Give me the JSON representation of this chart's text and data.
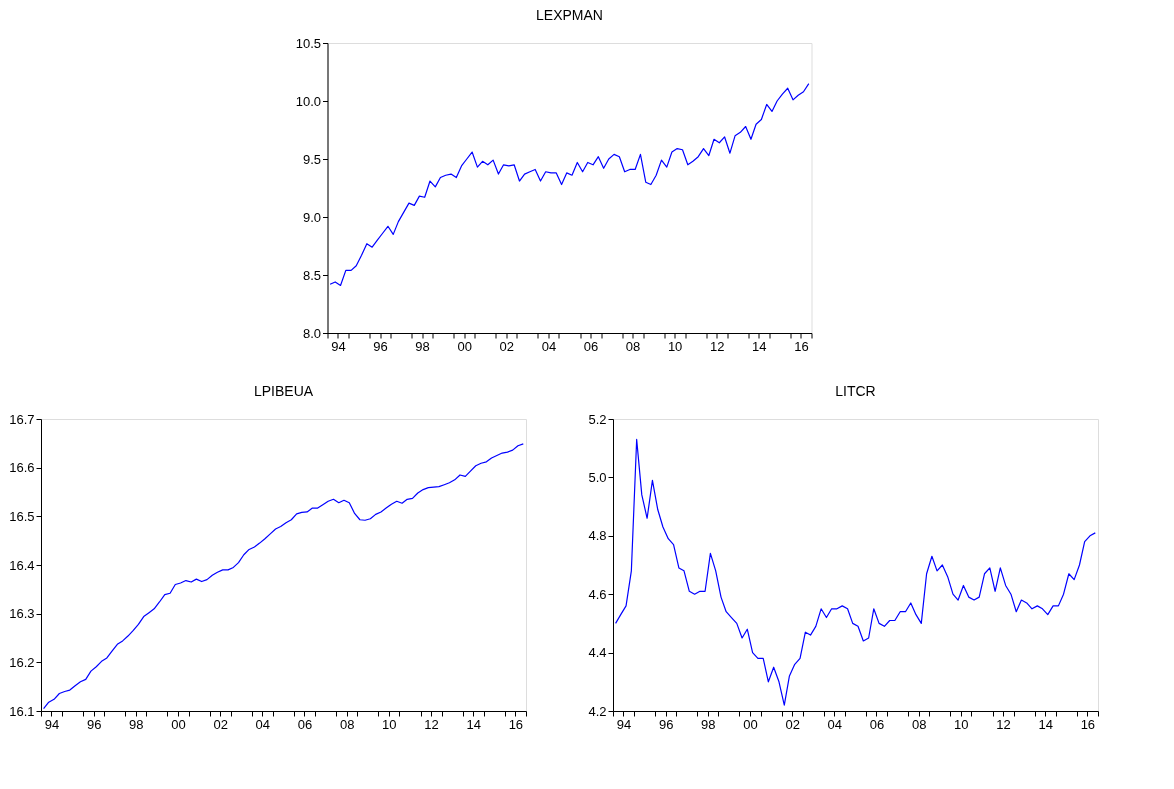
{
  "chart_data": [
    {
      "type": "line",
      "title": "LEXPMAN",
      "x": [
        "1994-02-15",
        "1994-05-15",
        "1994-08-15",
        "1994-11-15",
        "1995-02-15",
        "1995-05-15",
        "1995-08-15",
        "1995-11-15",
        "1996-02-15",
        "1996-05-15",
        "1996-08-15",
        "1996-11-15",
        "1997-02-15",
        "1997-05-15",
        "1997-08-15",
        "1997-11-15",
        "1998-02-15",
        "1998-05-15",
        "1998-08-15",
        "1998-11-15",
        "1999-02-15",
        "1999-05-15",
        "1999-08-15",
        "1999-11-15",
        "2000-02-15",
        "2000-05-15",
        "2000-08-15",
        "2000-11-15",
        "2001-02-15",
        "2001-05-15",
        "2001-08-15",
        "2001-11-15",
        "2002-02-15",
        "2002-05-15",
        "2002-08-15",
        "2002-11-15",
        "2003-02-15",
        "2003-05-15",
        "2003-08-15",
        "2003-11-15",
        "2004-02-15",
        "2004-05-15",
        "2004-08-15",
        "2004-11-15",
        "2005-02-15",
        "2005-05-15",
        "2005-08-15",
        "2005-11-15",
        "2006-02-15",
        "2006-05-15",
        "2006-08-15",
        "2006-11-15",
        "2007-02-15",
        "2007-05-15",
        "2007-08-15",
        "2007-11-15",
        "2008-02-15",
        "2008-05-15",
        "2008-08-15",
        "2008-11-15",
        "2009-02-15",
        "2009-05-15",
        "2009-08-15",
        "2009-11-15",
        "2010-02-15",
        "2010-05-15",
        "2010-08-15",
        "2010-11-15",
        "2011-02-15",
        "2011-05-15",
        "2011-08-15",
        "2011-11-15",
        "2012-02-15",
        "2012-05-15",
        "2012-08-15",
        "2012-11-15",
        "2013-02-15",
        "2013-05-15",
        "2013-08-15",
        "2013-11-15",
        "2014-02-15",
        "2014-05-15",
        "2014-08-15",
        "2014-11-15",
        "2015-02-15",
        "2015-05-15",
        "2015-08-15",
        "2015-11-15",
        "2016-02-15",
        "2016-05-15",
        "2016-08-15",
        "2016-11-15"
      ],
      "series": [
        {
          "color": "#0000ff",
          "values": [
            8.42,
            8.44,
            8.41,
            8.54,
            8.54,
            8.58,
            8.67,
            8.77,
            8.74,
            8.8,
            8.86,
            8.92,
            8.85,
            8.96,
            9.04,
            9.12,
            9.1,
            9.18,
            9.17,
            9.31,
            9.26,
            9.34,
            9.36,
            9.37,
            9.34,
            9.44,
            9.5,
            9.56,
            9.43,
            9.48,
            9.45,
            9.49,
            9.37,
            9.45,
            9.44,
            9.45,
            9.31,
            9.37,
            9.39,
            9.41,
            9.31,
            9.39,
            9.38,
            9.38,
            9.28,
            9.38,
            9.36,
            9.47,
            9.39,
            9.47,
            9.45,
            9.52,
            9.42,
            9.5,
            9.54,
            9.52,
            9.39,
            9.41,
            9.41,
            9.54,
            9.3,
            9.28,
            9.36,
            9.49,
            9.43,
            9.56,
            9.59,
            9.58,
            9.45,
            9.48,
            9.52,
            9.59,
            9.53,
            9.67,
            9.64,
            9.69,
            9.55,
            9.7,
            9.73,
            9.78,
            9.67,
            9.8,
            9.84,
            9.97,
            9.91,
            10.0,
            10.06,
            10.11,
            10.01,
            10.05,
            10.08,
            10.15
          ]
        }
      ],
      "xlim": [
        "1994-01-01",
        "2017-01-01"
      ],
      "xticks": [
        {
          "value": "1994",
          "label": null
        },
        {
          "value": "1994-07",
          "label": "94"
        },
        {
          "value": "1995",
          "label": null
        },
        {
          "value": "1996",
          "label": null
        },
        {
          "value": "1996-07",
          "label": "96"
        },
        {
          "value": "1997",
          "label": null
        },
        {
          "value": "1998",
          "label": null
        },
        {
          "value": "1998-07",
          "label": "98"
        },
        {
          "value": "1999",
          "label": null
        },
        {
          "value": "2000",
          "label": null
        },
        {
          "value": "2000-07",
          "label": "00"
        },
        {
          "value": "2001",
          "label": null
        },
        {
          "value": "2002",
          "label": null
        },
        {
          "value": "2002-07",
          "label": "02"
        },
        {
          "value": "2003",
          "label": null
        },
        {
          "value": "2004",
          "label": null
        },
        {
          "value": "2004-07",
          "label": "04"
        },
        {
          "value": "2005",
          "label": null
        },
        {
          "value": "2006",
          "label": null
        },
        {
          "value": "2006-07",
          "label": "06"
        },
        {
          "value": "2007",
          "label": null
        },
        {
          "value": "2008",
          "label": null
        },
        {
          "value": "2008-07",
          "label": "08"
        },
        {
          "value": "2009",
          "label": null
        },
        {
          "value": "2010",
          "label": null
        },
        {
          "value": "2010-07",
          "label": "10"
        },
        {
          "value": "2011",
          "label": null
        },
        {
          "value": "2012",
          "label": null
        },
        {
          "value": "2012-07",
          "label": "12"
        },
        {
          "value": "2013",
          "label": null
        },
        {
          "value": "2014",
          "label": null
        },
        {
          "value": "2014-07",
          "label": "14"
        },
        {
          "value": "2015",
          "label": null
        },
        {
          "value": "2016",
          "label": null
        },
        {
          "value": "2016-07",
          "label": "16"
        },
        {
          "value": "2017",
          "label": null
        }
      ],
      "ylim": [
        8.0,
        10.5
      ],
      "yticks": [
        {
          "value": 8,
          "label": "8.0"
        },
        {
          "value": 8.5,
          "label": "8.5"
        },
        {
          "value": 9,
          "label": "9.0"
        },
        {
          "value": 9.5,
          "label": "9.5"
        },
        {
          "value": 10,
          "label": "10.0"
        },
        {
          "value": 10.5,
          "label": "10.5"
        }
      ]
    },
    {
      "type": "line",
      "title": "LPIBEUA",
      "x": [
        "1994-02-15",
        "1994-05-15",
        "1994-08-15",
        "1994-11-15",
        "1995-02-15",
        "1995-05-15",
        "1995-08-15",
        "1995-11-15",
        "1996-02-15",
        "1996-05-15",
        "1996-08-15",
        "1996-11-15",
        "1997-02-15",
        "1997-05-15",
        "1997-08-15",
        "1997-11-15",
        "1998-02-15",
        "1998-05-15",
        "1998-08-15",
        "1998-11-15",
        "1999-02-15",
        "1999-05-15",
        "1999-08-15",
        "1999-11-15",
        "2000-02-15",
        "2000-05-15",
        "2000-08-15",
        "2000-11-15",
        "2001-02-15",
        "2001-05-15",
        "2001-08-15",
        "2001-11-15",
        "2002-02-15",
        "2002-05-15",
        "2002-08-15",
        "2002-11-15",
        "2003-02-15",
        "2003-05-15",
        "2003-08-15",
        "2003-11-15",
        "2004-02-15",
        "2004-05-15",
        "2004-08-15",
        "2004-11-15",
        "2005-02-15",
        "2005-05-15",
        "2005-08-15",
        "2005-11-15",
        "2006-02-15",
        "2006-05-15",
        "2006-08-15",
        "2006-11-15",
        "2007-02-15",
        "2007-05-15",
        "2007-08-15",
        "2007-11-15",
        "2008-02-15",
        "2008-05-15",
        "2008-08-15",
        "2008-11-15",
        "2009-02-15",
        "2009-05-15",
        "2009-08-15",
        "2009-11-15",
        "2010-02-15",
        "2010-05-15",
        "2010-08-15",
        "2010-11-15",
        "2011-02-15",
        "2011-05-15",
        "2011-08-15",
        "2011-11-15",
        "2012-02-15",
        "2012-05-15",
        "2012-08-15",
        "2012-11-15",
        "2013-02-15",
        "2013-05-15",
        "2013-08-15",
        "2013-11-15",
        "2014-02-15",
        "2014-05-15",
        "2014-08-15",
        "2014-11-15",
        "2015-02-15",
        "2015-05-15",
        "2015-08-15",
        "2015-11-15",
        "2016-02-15",
        "2016-05-15",
        "2016-08-15",
        "2016-11-15"
      ],
      "series": [
        {
          "color": "#0000ff",
          "values": [
            16.105,
            16.118,
            16.124,
            16.136,
            16.14,
            16.143,
            16.152,
            16.16,
            16.165,
            16.182,
            16.191,
            16.202,
            16.209,
            16.223,
            16.237,
            16.244,
            16.254,
            16.265,
            16.278,
            16.294,
            16.302,
            16.31,
            16.324,
            16.339,
            16.342,
            16.36,
            16.363,
            16.368,
            16.365,
            16.371,
            16.366,
            16.37,
            16.379,
            16.385,
            16.39,
            16.39,
            16.395,
            16.405,
            16.421,
            16.432,
            16.437,
            16.445,
            16.454,
            16.464,
            16.474,
            16.479,
            16.487,
            16.493,
            16.505,
            16.508,
            16.509,
            16.517,
            16.517,
            16.524,
            16.531,
            16.535,
            16.528,
            16.533,
            16.528,
            16.506,
            16.493,
            16.492,
            16.495,
            16.504,
            16.509,
            16.517,
            16.525,
            16.531,
            16.527,
            16.535,
            16.537,
            16.548,
            16.555,
            16.559,
            16.56,
            16.561,
            16.565,
            16.569,
            16.575,
            16.585,
            16.582,
            16.593,
            16.604,
            16.609,
            16.612,
            16.62,
            16.625,
            16.63,
            16.632,
            16.636,
            16.645,
            16.649
          ]
        }
      ],
      "xlim": [
        "1994-01-01",
        "2017-01-01"
      ],
      "xticks": [
        {
          "value": "1994",
          "label": null
        },
        {
          "value": "1994-07",
          "label": "94"
        },
        {
          "value": "1995",
          "label": null
        },
        {
          "value": "1996",
          "label": null
        },
        {
          "value": "1996-07",
          "label": "96"
        },
        {
          "value": "1997",
          "label": null
        },
        {
          "value": "1998",
          "label": null
        },
        {
          "value": "1998-07",
          "label": "98"
        },
        {
          "value": "1999",
          "label": null
        },
        {
          "value": "2000",
          "label": null
        },
        {
          "value": "2000-07",
          "label": "00"
        },
        {
          "value": "2001",
          "label": null
        },
        {
          "value": "2002",
          "label": null
        },
        {
          "value": "2002-07",
          "label": "02"
        },
        {
          "value": "2003",
          "label": null
        },
        {
          "value": "2004",
          "label": null
        },
        {
          "value": "2004-07",
          "label": "04"
        },
        {
          "value": "2005",
          "label": null
        },
        {
          "value": "2006",
          "label": null
        },
        {
          "value": "2006-07",
          "label": "06"
        },
        {
          "value": "2007",
          "label": null
        },
        {
          "value": "2008",
          "label": null
        },
        {
          "value": "2008-07",
          "label": "08"
        },
        {
          "value": "2009",
          "label": null
        },
        {
          "value": "2010",
          "label": null
        },
        {
          "value": "2010-07",
          "label": "10"
        },
        {
          "value": "2011",
          "label": null
        },
        {
          "value": "2012",
          "label": null
        },
        {
          "value": "2012-07",
          "label": "12"
        },
        {
          "value": "2013",
          "label": null
        },
        {
          "value": "2014",
          "label": null
        },
        {
          "value": "2014-07",
          "label": "14"
        },
        {
          "value": "2015",
          "label": null
        },
        {
          "value": "2016",
          "label": null
        },
        {
          "value": "2016-07",
          "label": "16"
        },
        {
          "value": "2017",
          "label": null
        }
      ],
      "ylim": [
        16.1,
        16.7
      ],
      "yticks": [
        16.1,
        16.2,
        16.3,
        16.4,
        16.5,
        16.6,
        16.7
      ]
    },
    {
      "type": "line",
      "title": "LITCR",
      "x": [
        "1994-02-15",
        "1994-05-15",
        "1994-08-15",
        "1994-11-15",
        "1995-02-15",
        "1995-05-15",
        "1995-08-15",
        "1995-11-15",
        "1996-02-15",
        "1996-05-15",
        "1996-08-15",
        "1996-11-15",
        "1997-02-15",
        "1997-05-15",
        "1997-08-15",
        "1997-11-15",
        "1998-02-15",
        "1998-05-15",
        "1998-08-15",
        "1998-11-15",
        "1999-02-15",
        "1999-05-15",
        "1999-08-15",
        "1999-11-15",
        "2000-02-15",
        "2000-05-15",
        "2000-08-15",
        "2000-11-15",
        "2001-02-15",
        "2001-05-15",
        "2001-08-15",
        "2001-11-15",
        "2002-02-15",
        "2002-05-15",
        "2002-08-15",
        "2002-11-15",
        "2003-02-15",
        "2003-05-15",
        "2003-08-15",
        "2003-11-15",
        "2004-02-15",
        "2004-05-15",
        "2004-08-15",
        "2004-11-15",
        "2005-02-15",
        "2005-05-15",
        "2005-08-15",
        "2005-11-15",
        "2006-02-15",
        "2006-05-15",
        "2006-08-15",
        "2006-11-15",
        "2007-02-15",
        "2007-05-15",
        "2007-08-15",
        "2007-11-15",
        "2008-02-15",
        "2008-05-15",
        "2008-08-15",
        "2008-11-15",
        "2009-02-15",
        "2009-05-15",
        "2009-08-15",
        "2009-11-15",
        "2010-02-15",
        "2010-05-15",
        "2010-08-15",
        "2010-11-15",
        "2011-02-15",
        "2011-05-15",
        "2011-08-15",
        "2011-11-15",
        "2012-02-15",
        "2012-05-15",
        "2012-08-15",
        "2012-11-15",
        "2013-02-15",
        "2013-05-15",
        "2013-08-15",
        "2013-11-15",
        "2014-02-15",
        "2014-05-15",
        "2014-08-15",
        "2014-11-15",
        "2015-02-15",
        "2015-05-15",
        "2015-08-15",
        "2015-11-15",
        "2016-02-15",
        "2016-05-15",
        "2016-08-15",
        "2016-11-15"
      ],
      "series": [
        {
          "color": "#0000ff",
          "values": [
            4.5,
            4.53,
            4.56,
            4.68,
            5.13,
            4.94,
            4.86,
            4.99,
            4.89,
            4.83,
            4.79,
            4.77,
            4.69,
            4.68,
            4.61,
            4.6,
            4.61,
            4.61,
            4.74,
            4.68,
            4.59,
            4.54,
            4.52,
            4.5,
            4.45,
            4.48,
            4.4,
            4.38,
            4.38,
            4.3,
            4.35,
            4.3,
            4.22,
            4.32,
            4.36,
            4.38,
            4.47,
            4.46,
            4.49,
            4.55,
            4.52,
            4.55,
            4.55,
            4.56,
            4.55,
            4.5,
            4.49,
            4.44,
            4.45,
            4.55,
            4.5,
            4.49,
            4.51,
            4.51,
            4.54,
            4.54,
            4.57,
            4.53,
            4.5,
            4.67,
            4.73,
            4.68,
            4.7,
            4.66,
            4.6,
            4.58,
            4.63,
            4.59,
            4.58,
            4.59,
            4.67,
            4.69,
            4.61,
            4.69,
            4.63,
            4.6,
            4.54,
            4.58,
            4.57,
            4.55,
            4.56,
            4.55,
            4.53,
            4.56,
            4.56,
            4.6,
            4.67,
            4.65,
            4.7,
            4.78,
            4.8,
            4.81
          ]
        }
      ],
      "xlim": [
        "1994-01-01",
        "2017-01-01"
      ],
      "xticks": [
        {
          "value": "1994",
          "label": null
        },
        {
          "value": "1994-07",
          "label": "94"
        },
        {
          "value": "1995",
          "label": null
        },
        {
          "value": "1996",
          "label": null
        },
        {
          "value": "1996-07",
          "label": "96"
        },
        {
          "value": "1997",
          "label": null
        },
        {
          "value": "1998",
          "label": null
        },
        {
          "value": "1998-07",
          "label": "98"
        },
        {
          "value": "1999",
          "label": null
        },
        {
          "value": "2000",
          "label": null
        },
        {
          "value": "2000-07",
          "label": "00"
        },
        {
          "value": "2001",
          "label": null
        },
        {
          "value": "2002",
          "label": null
        },
        {
          "value": "2002-07",
          "label": "02"
        },
        {
          "value": "2003",
          "label": null
        },
        {
          "value": "2004",
          "label": null
        },
        {
          "value": "2004-07",
          "label": "04"
        },
        {
          "value": "2005",
          "label": null
        },
        {
          "value": "2006",
          "label": null
        },
        {
          "value": "2006-07",
          "label": "06"
        },
        {
          "value": "2007",
          "label": null
        },
        {
          "value": "2008",
          "label": null
        },
        {
          "value": "2008-07",
          "label": "08"
        },
        {
          "value": "2009",
          "label": null
        },
        {
          "value": "2010",
          "label": null
        },
        {
          "value": "2010-07",
          "label": "10"
        },
        {
          "value": "2011",
          "label": null
        },
        {
          "value": "2012",
          "label": null
        },
        {
          "value": "2012-07",
          "label": "12"
        },
        {
          "value": "2013",
          "label": null
        },
        {
          "value": "2014",
          "label": null
        },
        {
          "value": "2014-07",
          "label": "14"
        },
        {
          "value": "2015",
          "label": null
        },
        {
          "value": "2016",
          "label": null
        },
        {
          "value": "2016-07",
          "label": "16"
        },
        {
          "value": "2017",
          "label": null
        }
      ],
      "ylim": [
        4.2,
        5.2
      ],
      "yticks": [
        {
          "value": 4.2,
          "label": "4.2"
        },
        {
          "value": 4.4,
          "label": "4.4"
        },
        {
          "value": 4.6,
          "label": "4.6"
        },
        {
          "value": 4.8,
          "label": "4.8"
        },
        {
          "value": 5.0,
          "label": "5.0"
        },
        {
          "value": 5.2,
          "label": "5.2"
        }
      ]
    }
  ]
}
